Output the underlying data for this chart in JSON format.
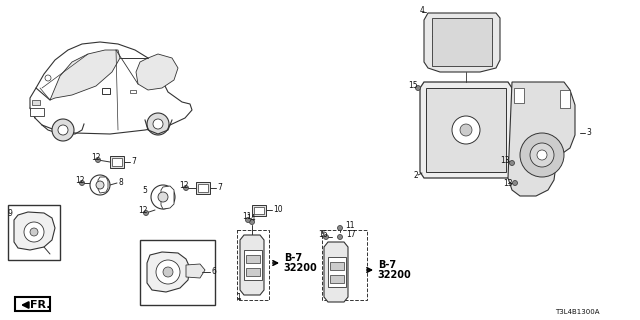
{
  "bg_color": "#ffffff",
  "diagram_code": "T3L4B1300A",
  "line_color": "#333333",
  "text_color": "#111111",
  "bold_color": "#000000",
  "fr_label": "FR."
}
